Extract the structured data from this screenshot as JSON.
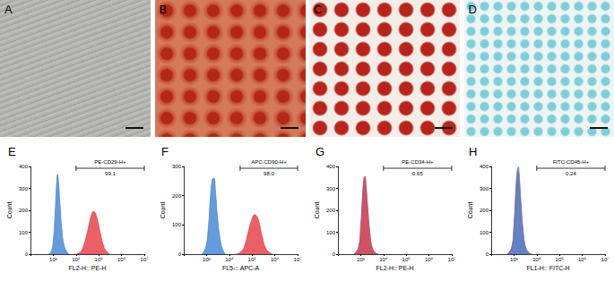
{
  "panels": [
    {
      "label": "A"
    },
    {
      "label": "B"
    },
    {
      "label": "C"
    },
    {
      "label": "D"
    }
  ],
  "chart_data": [
    {
      "type": "area",
      "title": "E",
      "x_label": "FL2-H:: PE-H",
      "y_label": "Count",
      "log": "x",
      "xlim": [
        100,
        10000000
      ],
      "xticks": [
        {
          "value": 1000,
          "label": "10³"
        },
        {
          "value": 10000,
          "label": "10⁴"
        },
        {
          "value": 100000,
          "label": "10⁵"
        },
        {
          "value": 1000000,
          "label": "10⁶"
        },
        {
          "value": 10000000,
          "label": "10⁷"
        }
      ],
      "ylim": [
        0,
        400
      ],
      "yticks": [
        0,
        100,
        200,
        300,
        400
      ],
      "grid": false,
      "gate": {
        "label": "PE-CD29-H+",
        "range": [
          10000,
          10000000
        ],
        "value": 99.1
      },
      "series": [
        {
          "color": "#4a8ad6",
          "x": [
            600,
            800,
            1000,
            1200,
            1400,
            1550,
            1700,
            2000,
            2400,
            3000,
            4000,
            5000
          ],
          "values": [
            0,
            10,
            60,
            180,
            320,
            365,
            330,
            220,
            110,
            40,
            10,
            0
          ]
        },
        {
          "color": "#e5444c",
          "x": [
            10000,
            15000,
            20000,
            30000,
            40000,
            50000,
            60000,
            70000,
            90000,
            120000,
            160000,
            220000,
            300000
          ],
          "values": [
            0,
            8,
            30,
            90,
            150,
            185,
            195,
            188,
            150,
            90,
            40,
            12,
            0
          ]
        }
      ]
    },
    {
      "type": "area",
      "title": "F",
      "x_label": "FL5-:: APC-A",
      "y_label": "Count",
      "log": "x",
      "xlim": [
        100,
        10000000
      ],
      "xticks": [
        {
          "value": 1000,
          "label": "10³"
        },
        {
          "value": 10000,
          "label": "10⁴"
        },
        {
          "value": 100000,
          "label": "10⁵"
        },
        {
          "value": 1000000,
          "label": "10⁶"
        },
        {
          "value": 10000000,
          "label": "10⁷"
        }
      ],
      "ylim": [
        0,
        300
      ],
      "yticks": [
        0,
        100,
        200,
        300
      ],
      "grid": false,
      "gate": {
        "label": "APC-CD90-H+",
        "range": [
          30000,
          10000000
        ],
        "value": 98.0,
        "value_label": "98.0"
      },
      "series": [
        {
          "color": "#4a8ad6",
          "x": [
            600,
            900,
            1200,
            1500,
            1800,
            2100,
            2500,
            3000,
            4000,
            5500,
            7000
          ],
          "values": [
            0,
            20,
            90,
            200,
            255,
            260,
            210,
            130,
            50,
            10,
            0
          ]
        },
        {
          "color": "#e5444c",
          "x": [
            20000,
            35000,
            50000,
            70000,
            100000,
            130000,
            160000,
            200000,
            280000,
            400000,
            600000,
            800000
          ],
          "values": [
            0,
            10,
            35,
            80,
            120,
            135,
            130,
            110,
            60,
            20,
            5,
            0
          ]
        }
      ]
    },
    {
      "type": "area",
      "title": "G",
      "x_label": "FL2-H:: PE-H",
      "y_label": "Count",
      "log": "x",
      "xlim": [
        100,
        10000000
      ],
      "xticks": [
        {
          "value": 1000,
          "label": "10³"
        },
        {
          "value": 10000,
          "label": "10⁴"
        },
        {
          "value": 100000,
          "label": "10⁵"
        },
        {
          "value": 1000000,
          "label": "10⁶"
        },
        {
          "value": 10000000,
          "label": "10⁷"
        }
      ],
      "ylim": [
        0,
        400
      ],
      "yticks": [
        0,
        100,
        200,
        300,
        400
      ],
      "grid": false,
      "gate": {
        "label": "PE-CD34-H+",
        "range": [
          10000,
          10000000
        ],
        "value": 0.65
      },
      "series": [
        {
          "color": "#4a8ad6",
          "x": [
            500,
            800,
            1000,
            1200,
            1400,
            1550,
            1700,
            2000,
            2500,
            3200,
            4500,
            6000
          ],
          "values": [
            0,
            28,
            115,
            250,
            335,
            340,
            310,
            215,
            100,
            30,
            5,
            0
          ]
        },
        {
          "color": "#e5444c",
          "x": [
            500,
            800,
            1000,
            1200,
            1400,
            1550,
            1700,
            2000,
            2500,
            3200,
            4500,
            6000
          ],
          "values": [
            0,
            30,
            120,
            260,
            350,
            355,
            320,
            220,
            100,
            30,
            5,
            0
          ]
        }
      ]
    },
    {
      "type": "area",
      "title": "H",
      "x_label": "FL1-H:: FITC-H",
      "y_label": "Count",
      "log": "x",
      "xlim": [
        100,
        10000000
      ],
      "xticks": [
        {
          "value": 1000,
          "label": "10³"
        },
        {
          "value": 10000,
          "label": "10⁴"
        },
        {
          "value": 100000,
          "label": "10⁵"
        },
        {
          "value": 1000000,
          "label": "10⁶"
        },
        {
          "value": 10000000,
          "label": "10⁷"
        }
      ],
      "ylim": [
        0,
        400
      ],
      "yticks": [
        0,
        100,
        200,
        300,
        400
      ],
      "grid": false,
      "gate": {
        "label": "FITC-CD45-H+",
        "range": [
          10000,
          10000000
        ],
        "value": 0.24
      },
      "series": [
        {
          "color": "#e5444c",
          "x": [
            500,
            800,
            1000,
            1200,
            1400,
            1550,
            1700,
            2000,
            2500,
            3200,
            4500,
            6000
          ],
          "values": [
            0,
            30,
            125,
            270,
            365,
            375,
            340,
            230,
            105,
            32,
            5,
            0
          ]
        },
        {
          "color": "#4a8ad6",
          "x": [
            500,
            800,
            1000,
            1200,
            1400,
            1550,
            1700,
            2000,
            2500,
            3200,
            4500,
            6000
          ],
          "values": [
            0,
            32,
            130,
            285,
            385,
            398,
            360,
            240,
            110,
            34,
            6,
            0
          ]
        }
      ]
    }
  ]
}
